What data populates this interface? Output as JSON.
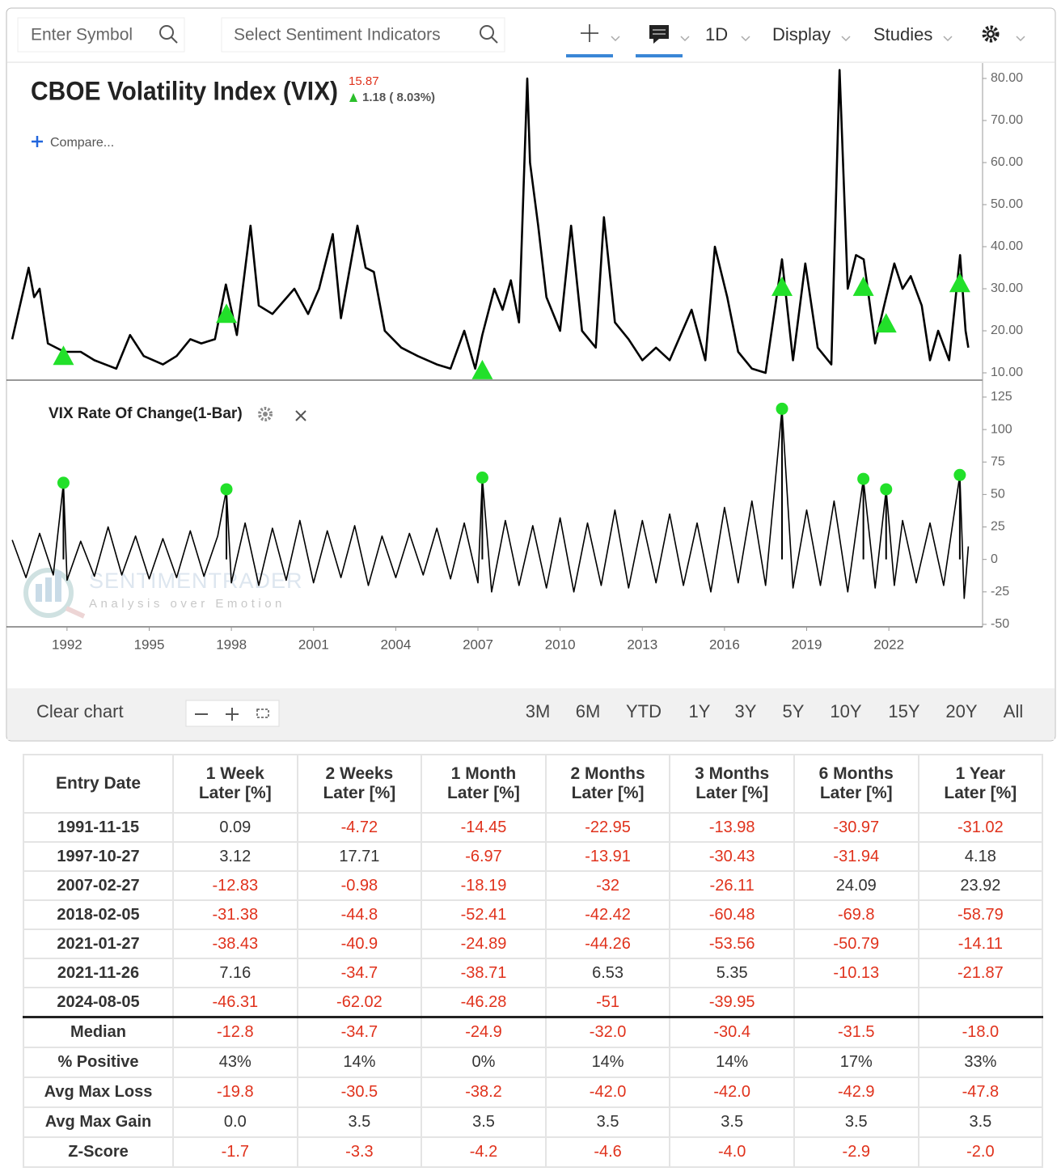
{
  "toolbar": {
    "symbol": "Enter Symbol",
    "sentiment": "Select Sentiment Indicators",
    "interval": "1D",
    "display": "Display",
    "studies": "Studies"
  },
  "chart_data": [
    {
      "type": "line",
      "title": "CBOE Volatility Index (VIX)",
      "last_price": "15.87",
      "change": "1.18 ( 8.03%)",
      "compare": "Compare...",
      "watermark": "SENTIMENTRADER",
      "watermark_tagline": "Analysis over Emotion",
      "color": "#000000",
      "marker": "triangle",
      "signal_color": "#22e02a",
      "x": [
        1990.0,
        1990.6,
        1990.8,
        1991.0,
        1991.3,
        1991.9,
        1992.5,
        1993.0,
        1993.8,
        1994.3,
        1994.8,
        1995.5,
        1996.0,
        1996.5,
        1996.9,
        1997.4,
        1997.8,
        1998.2,
        1998.7,
        1999.0,
        1999.5,
        2000.3,
        2000.8,
        2001.2,
        2001.7,
        2002.0,
        2002.6,
        2002.9,
        2003.2,
        2003.6,
        2004.2,
        2004.8,
        2005.5,
        2006.0,
        2006.5,
        2006.9,
        2007.16,
        2007.6,
        2007.9,
        2008.2,
        2008.5,
        2008.8,
        2008.9,
        2009.2,
        2009.5,
        2010.0,
        2010.4,
        2010.8,
        2011.3,
        2011.6,
        2012.0,
        2012.5,
        2013.0,
        2013.5,
        2014.0,
        2014.8,
        2015.3,
        2015.65,
        2016.1,
        2016.5,
        2017.0,
        2017.5,
        2018.1,
        2018.5,
        2018.95,
        2019.4,
        2019.9,
        2020.2,
        2020.5,
        2020.8,
        2021.08,
        2021.5,
        2021.9,
        2022.2,
        2022.5,
        2022.8,
        2023.2,
        2023.5,
        2023.8,
        2024.2,
        2024.6,
        2024.8,
        2024.9
      ],
      "values": [
        18,
        35,
        28,
        30,
        17,
        15,
        15,
        13,
        11,
        19,
        14,
        12,
        14,
        18,
        17,
        18,
        31,
        19,
        45,
        26,
        24,
        30,
        24,
        30,
        43,
        23,
        45,
        35,
        34,
        20,
        16,
        14,
        12,
        11,
        20,
        11,
        19,
        30,
        25,
        32,
        22,
        80,
        60,
        45,
        28,
        20,
        45,
        20,
        16,
        47,
        22,
        18,
        13,
        16,
        13,
        25,
        13,
        40,
        28,
        15,
        11,
        10,
        37,
        13,
        36,
        16,
        12,
        82,
        30,
        38,
        37,
        17,
        28,
        36,
        30,
        33,
        26,
        13,
        20,
        13,
        38,
        20,
        16
      ],
      "signals": {
        "x": [
          1991.87,
          1997.82,
          2007.16,
          2018.1,
          2021.07,
          2021.9,
          2024.59
        ],
        "values": [
          14,
          24,
          10.6,
          30.4,
          30.4,
          21.7,
          31.3
        ]
      },
      "xlim": [
        1989.79,
        2025.42
      ],
      "ylim": [
        8.27,
        83.65
      ],
      "yticks": [
        {
          "value": 10,
          "label": "10.00"
        },
        {
          "value": 20,
          "label": "20.00"
        },
        {
          "value": 30,
          "label": "30.00"
        },
        {
          "value": 40,
          "label": "40.00"
        },
        {
          "value": 50,
          "label": "50.00"
        },
        {
          "value": 60,
          "label": "60.00"
        },
        {
          "value": 70,
          "label": "70.00"
        },
        {
          "value": 80,
          "label": "80.00"
        }
      ]
    },
    {
      "type": "line",
      "title": "VIX Rate Of Change(1-Bar)",
      "color": "#000000",
      "marker": "circle",
      "signal_color": "#22e02a",
      "x": [
        1990.0,
        1990.5,
        1991.0,
        1991.5,
        1991.87,
        1992.0,
        1992.5,
        1993.0,
        1993.5,
        1994.0,
        1994.5,
        1995.0,
        1995.5,
        1996.0,
        1996.5,
        1997.0,
        1997.5,
        1997.82,
        1998.0,
        1998.5,
        1999.0,
        1999.5,
        2000.0,
        2000.5,
        2001.0,
        2001.5,
        2002.0,
        2002.5,
        2003.0,
        2003.5,
        2004.0,
        2004.5,
        2005.0,
        2005.5,
        2006.0,
        2006.5,
        2007.0,
        2007.16,
        2007.5,
        2008.0,
        2008.5,
        2009.0,
        2009.5,
        2010.0,
        2010.5,
        2011.0,
        2011.5,
        2012.0,
        2012.5,
        2013.0,
        2013.5,
        2014.0,
        2014.5,
        2015.0,
        2015.5,
        2016.0,
        2016.5,
        2017.0,
        2017.5,
        2018.1,
        2018.5,
        2019.0,
        2019.5,
        2020.0,
        2020.5,
        2021.07,
        2021.5,
        2021.9,
        2022.2,
        2022.5,
        2023.0,
        2023.5,
        2024.0,
        2024.59,
        2024.75,
        2024.9
      ],
      "values": [
        15,
        -14,
        20,
        -12,
        59,
        -16,
        14,
        -13,
        25,
        -12,
        18,
        -15,
        16,
        -14,
        22,
        -13,
        18,
        54,
        -18,
        28,
        -20,
        24,
        -16,
        30,
        -18,
        22,
        -14,
        26,
        -20,
        18,
        -14,
        20,
        -12,
        24,
        -15,
        28,
        -18,
        63,
        -25,
        30,
        -20,
        26,
        -22,
        32,
        -25,
        28,
        -20,
        38,
        -22,
        30,
        -18,
        35,
        -20,
        28,
        -25,
        40,
        -18,
        45,
        -20,
        116,
        -22,
        38,
        -20,
        45,
        -25,
        62,
        -22,
        54,
        -20,
        30,
        -18,
        28,
        -20,
        65,
        -30,
        10
      ],
      "signals": {
        "x": [
          1991.87,
          1997.82,
          2007.16,
          2018.1,
          2021.07,
          2021.9,
          2024.59
        ],
        "values": [
          59,
          54,
          63,
          116,
          62,
          54,
          65
        ]
      },
      "xlim": [
        1989.79,
        2025.42
      ],
      "ylim": [
        -51.9,
        136.8
      ],
      "yticks": [
        -50,
        -25,
        0,
        25,
        50,
        75,
        100,
        125
      ],
      "xticks": [
        1992,
        1995,
        1998,
        2001,
        2004,
        2007,
        2010,
        2013,
        2016,
        2019,
        2022
      ]
    }
  ],
  "footer": {
    "clear": "Clear chart",
    "ranges": [
      "3M",
      "6M",
      "YTD",
      "1Y",
      "3Y",
      "5Y",
      "10Y",
      "15Y",
      "20Y",
      "All"
    ]
  },
  "table": {
    "header": [
      "Entry Date",
      [
        "1 Week",
        "Later [%]"
      ],
      [
        "2 Weeks",
        "Later [%]"
      ],
      [
        "1 Month",
        "Later [%]"
      ],
      [
        "2 Months",
        "Later [%]"
      ],
      [
        "3 Months",
        "Later [%]"
      ],
      [
        "6 Months",
        "Later [%]"
      ],
      [
        "1 Year",
        "Later [%]"
      ]
    ],
    "rows": [
      [
        "1991-11-15",
        "0.09",
        "-4.72",
        "-14.45",
        "-22.95",
        "-13.98",
        "-30.97",
        "-31.02"
      ],
      [
        "1997-10-27",
        "3.12",
        "17.71",
        "-6.97",
        "-13.91",
        "-30.43",
        "-31.94",
        "4.18"
      ],
      [
        "2007-02-27",
        "-12.83",
        "-0.98",
        "-18.19",
        "-32",
        "-26.11",
        "24.09",
        "23.92"
      ],
      [
        "2018-02-05",
        "-31.38",
        "-44.8",
        "-52.41",
        "-42.42",
        "-60.48",
        "-69.8",
        "-58.79"
      ],
      [
        "2021-01-27",
        "-38.43",
        "-40.9",
        "-24.89",
        "-44.26",
        "-53.56",
        "-50.79",
        "-14.11"
      ],
      [
        "2021-11-26",
        "7.16",
        "-34.7",
        "-38.71",
        "6.53",
        "5.35",
        "-10.13",
        "-21.87"
      ],
      [
        "2024-08-05",
        "-46.31",
        "-62.02",
        "-46.28",
        "-51",
        "-39.95",
        null,
        null
      ]
    ],
    "summary": [
      [
        "Median",
        "-12.8",
        "-34.7",
        "-24.9",
        "-32.0",
        "-30.4",
        "-31.5",
        "-18.0"
      ],
      [
        "% Positive",
        "43%",
        "14%",
        "0%",
        "14%",
        "14%",
        "17%",
        "33%"
      ],
      [
        "Avg Max Loss",
        "-19.8",
        "-30.5",
        "-38.2",
        "-42.0",
        "-42.0",
        "-42.9",
        "-47.8"
      ],
      [
        "Avg Max Gain",
        "0.0",
        "3.5",
        "3.5",
        "3.5",
        "3.5",
        "3.5",
        "3.5"
      ],
      [
        "Z-Score",
        "-1.7",
        "-3.3",
        "-4.2",
        "-4.6",
        "-4.0",
        "-2.9",
        "-2.0"
      ]
    ]
  }
}
